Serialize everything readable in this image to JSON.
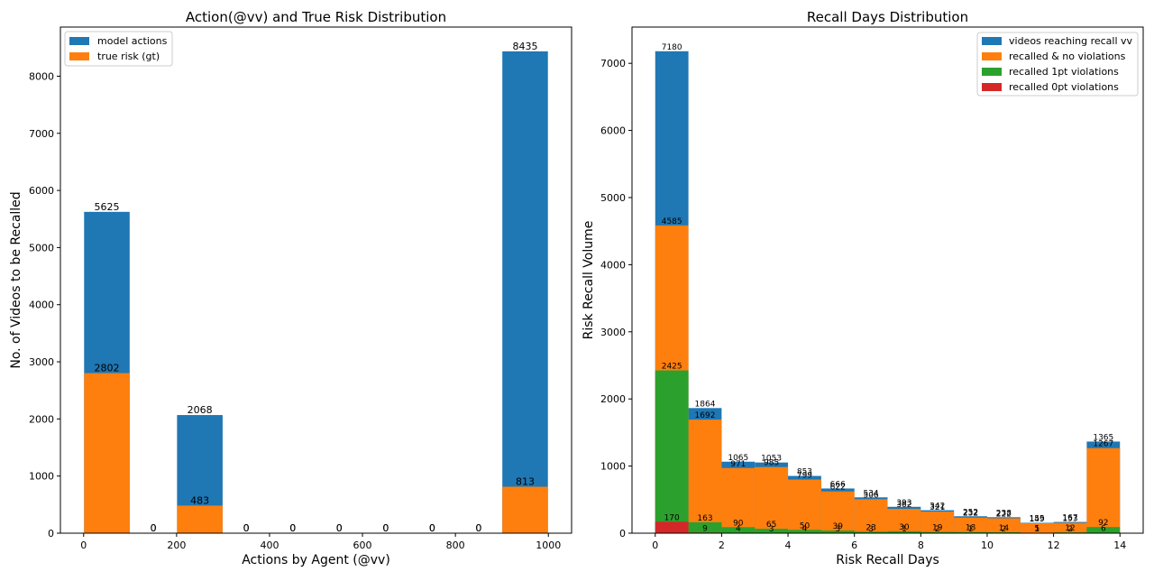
{
  "colors": {
    "blue": "#1f77b4",
    "orange": "#ff7f0e",
    "green": "#2ca02c",
    "red": "#d62728"
  },
  "chart_data": [
    {
      "type": "bar",
      "title": "Action(@vv) and True Risk Distribution",
      "xlabel": "Actions by Agent (@vv)",
      "ylabel": "No. of Videos to be Recalled",
      "xlim": [
        -50,
        1050
      ],
      "ylim": [
        0,
        8860
      ],
      "xticks": [
        0,
        200,
        400,
        600,
        800,
        1000
      ],
      "yticks": [
        0,
        1000,
        2000,
        3000,
        4000,
        5000,
        6000,
        7000,
        8000
      ],
      "bin_edges": [
        0,
        100,
        200,
        300,
        400,
        500,
        600,
        700,
        800,
        900,
        1000
      ],
      "legend_position": "upper left",
      "series": [
        {
          "name": "model actions",
          "color": "#1f77b4",
          "values": [
            5625,
            0,
            2068,
            0,
            0,
            0,
            0,
            0,
            0,
            8435
          ],
          "labels": [
            "5625",
            "0",
            "2068",
            "0",
            "0",
            "0",
            "0",
            "0",
            "0",
            "8435"
          ]
        },
        {
          "name": "true risk (gt)",
          "color": "#ff7f0e",
          "values": [
            2802,
            0,
            483,
            0,
            0,
            0,
            0,
            0,
            0,
            813
          ],
          "labels": [
            "2802",
            "0",
            "483",
            "0",
            "0",
            "0",
            "0",
            "0",
            "0",
            "813"
          ]
        }
      ]
    },
    {
      "type": "bar",
      "title": "Recall Days Distribution",
      "xlabel": "Risk Recall Days",
      "ylabel": "Risk Recall Volume",
      "xlim": [
        -0.7,
        14.7
      ],
      "ylim": [
        0,
        7540
      ],
      "xticks": [
        0,
        2,
        4,
        6,
        8,
        10,
        12,
        14
      ],
      "yticks": [
        0,
        1000,
        2000,
        3000,
        4000,
        5000,
        6000,
        7000
      ],
      "bin_edges": [
        0,
        1,
        2,
        3,
        4,
        5,
        6,
        7,
        8,
        9,
        10,
        11,
        12,
        13,
        14
      ],
      "legend_position": "upper right",
      "series": [
        {
          "name": "videos reaching recall vv",
          "color": "#1f77b4",
          "values": [
            7180,
            1864,
            1065,
            1053,
            853,
            666,
            534,
            393,
            342,
            252,
            238,
            155,
            167,
            1365
          ],
          "labels": [
            "7180",
            "1864",
            "1065",
            "1053",
            "853",
            "666",
            "534",
            "393",
            "342",
            "252",
            "238",
            "155",
            "167",
            "1365"
          ]
        },
        {
          "name": "recalled & no violations",
          "color": "#ff7f0e",
          "values": [
            4585,
            1692,
            971,
            985,
            799,
            622,
            506,
            362,
            321,
            232,
            222,
            149,
            153,
            1267
          ],
          "labels": [
            "4585",
            "1692",
            "971",
            "985",
            "799",
            "622",
            "506",
            "362",
            "321",
            "232",
            "222",
            "149",
            "153",
            "1267"
          ]
        },
        {
          "name": "recalled 1pt violations",
          "color": "#2ca02c",
          "values": [
            2425,
            163,
            90,
            65,
            50,
            39,
            23,
            30,
            19,
            18,
            14,
            5,
            12,
            92
          ],
          "labels": [
            "2425",
            "163",
            "90",
            "65",
            "50",
            "39",
            "23",
            "30",
            "19",
            "18",
            "14",
            "5",
            "12",
            "92"
          ]
        },
        {
          "name": "recalled 0pt violations",
          "color": "#d62728",
          "values": [
            170,
            9,
            4,
            3,
            4,
            3,
            3,
            1,
            2,
            1,
            2,
            1,
            2,
            6
          ],
          "labels": [
            "170",
            "9",
            "4",
            "3",
            "4",
            "3",
            "3",
            "1",
            "2",
            "1",
            "2",
            "1",
            "2",
            "6"
          ]
        }
      ]
    }
  ]
}
